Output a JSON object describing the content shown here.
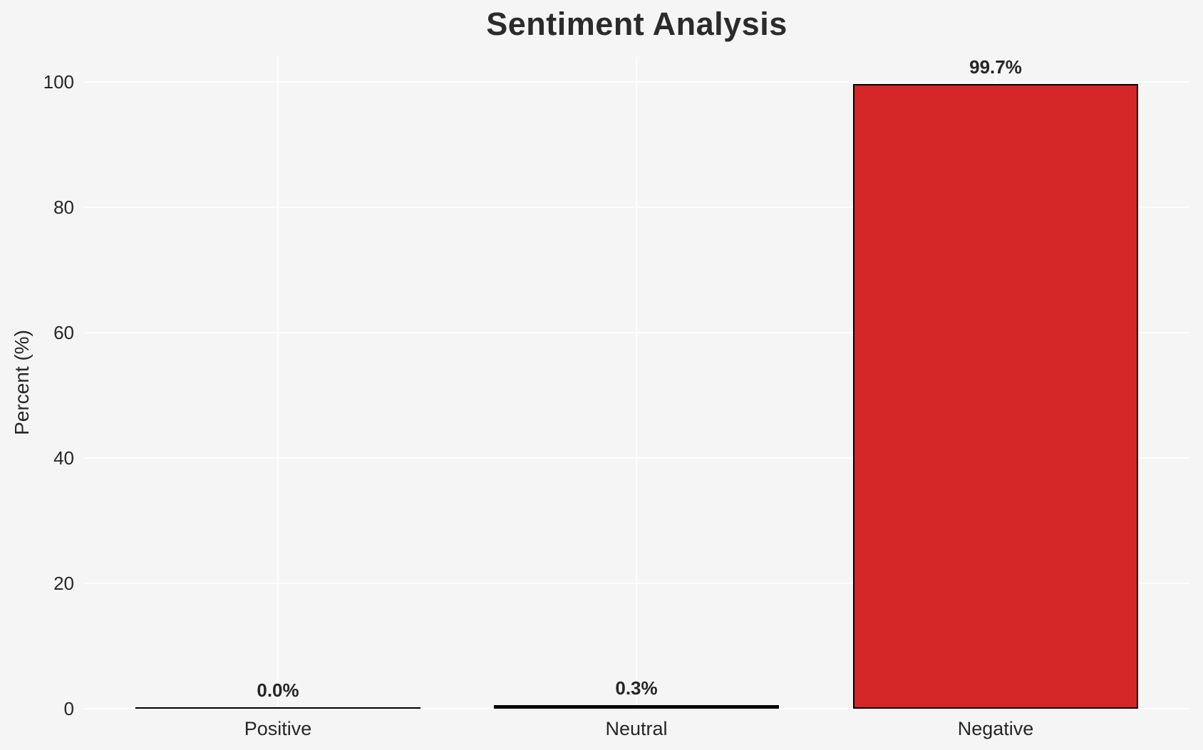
{
  "chart_data": {
    "type": "bar",
    "title": "Sentiment Analysis",
    "ylabel": "Percent (%)",
    "xlabel": "",
    "categories": [
      "Positive",
      "Neutral",
      "Negative"
    ],
    "values": [
      0.0,
      0.3,
      99.7
    ],
    "value_labels": [
      "0.0%",
      "0.3%",
      "99.7%"
    ],
    "yticks": [
      0,
      20,
      40,
      60,
      80,
      100
    ],
    "ytick_labels": [
      "0",
      "20",
      "40",
      "60",
      "80",
      "100"
    ],
    "ylim": [
      0,
      100
    ],
    "grid": true,
    "legend_position": "none",
    "bar_colors": [
      "#000000",
      "#000000",
      "#d62728"
    ],
    "colors": {
      "negative_bar_fill": "#d62728",
      "bar_edge": "#000000",
      "background": "#f5f5f6",
      "gridline": "#fdfdfd",
      "text": "#262626"
    }
  }
}
